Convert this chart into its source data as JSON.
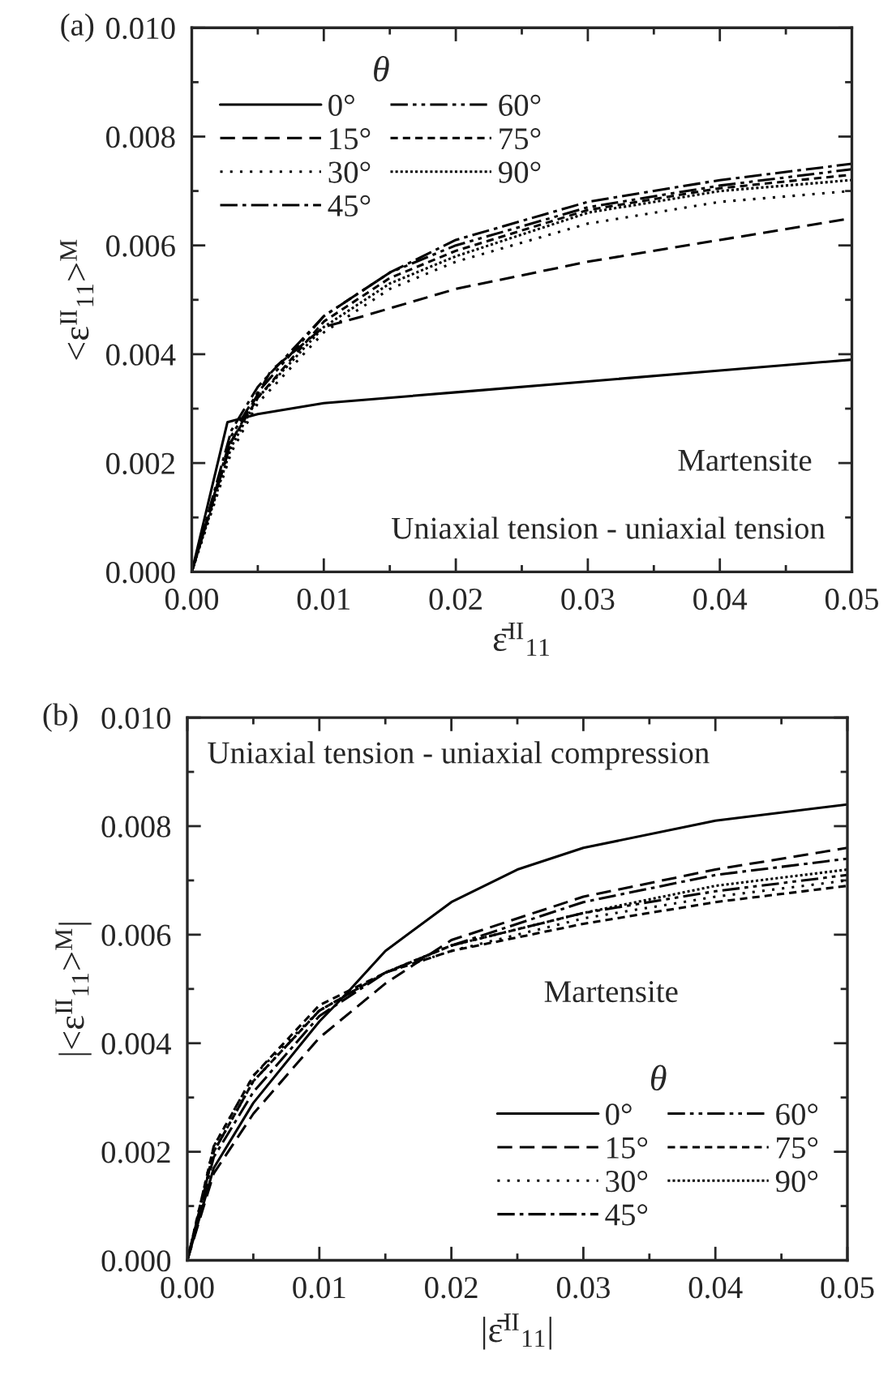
{
  "chart_data": [
    {
      "type": "line",
      "xlabel": "ε̄$^{II}$$_{11}$",
      "ylabel": "<ε$^{II}$$_{11}$>$^{M}$",
      "legend_title": "θ",
      "legend": "top left",
      "annotations": [
        "(a)",
        "Martensite",
        "Uniaxial tension - uniaxial tension"
      ],
      "xlim": [
        0,
        0.05
      ],
      "ylim": [
        0,
        0.01
      ],
      "xticks": [
        {
          "value": 0,
          "label": "0.00"
        },
        {
          "value": 0.01,
          "label": "0.01"
        },
        {
          "value": 0.02,
          "label": "0.02"
        },
        {
          "value": 0.03,
          "label": "0.03"
        },
        {
          "value": 0.04,
          "label": "0.04"
        },
        {
          "value": 0.05,
          "label": "0.05"
        }
      ],
      "yticks": [
        {
          "value": 0,
          "label": "0.000"
        },
        {
          "value": 0.002,
          "label": "0.002"
        },
        {
          "value": 0.004,
          "label": "0.004"
        },
        {
          "value": 0.006,
          "label": "0.006"
        },
        {
          "value": 0.008,
          "label": "0.008"
        },
        {
          "value": 0.01,
          "label": "0.010"
        }
      ],
      "series": [
        {
          "name": "0°",
          "color": "#000000",
          "line_style": "solid",
          "x": [
            0,
            0.0027,
            0.005,
            0.01,
            0.02,
            0.03,
            0.04,
            0.05
          ],
          "values": [
            0,
            0.00275,
            0.0029,
            0.0031,
            0.0033,
            0.0035,
            0.0037,
            0.0039
          ]
        },
        {
          "name": "15°",
          "color": "#000000",
          "line_style": "dashed",
          "x": [
            0,
            0.003,
            0.006,
            0.01,
            0.013,
            0.02,
            0.03,
            0.04,
            0.05
          ],
          "values": [
            0,
            0.0024,
            0.0037,
            0.0045,
            0.0047,
            0.0052,
            0.0057,
            0.0061,
            0.0065
          ]
        },
        {
          "name": "30°",
          "color": "#000000",
          "line_style": "dotted",
          "x": [
            0,
            0.003,
            0.005,
            0.01,
            0.015,
            0.02,
            0.03,
            0.04,
            0.05
          ],
          "values": [
            0,
            0.0022,
            0.0031,
            0.0044,
            0.0052,
            0.0057,
            0.0064,
            0.0068,
            0.007
          ]
        },
        {
          "name": "45°",
          "color": "#000000",
          "line_style": "dashdot",
          "x": [
            0,
            0.003,
            0.005,
            0.01,
            0.015,
            0.02,
            0.03,
            0.04,
            0.05
          ],
          "values": [
            0,
            0.0026,
            0.0034,
            0.0047,
            0.0055,
            0.0061,
            0.0068,
            0.0072,
            0.0075
          ]
        },
        {
          "name": "60°",
          "color": "#000000",
          "line_style": "dashdotdot",
          "x": [
            0,
            0.003,
            0.005,
            0.01,
            0.015,
            0.02,
            0.03,
            0.04,
            0.05
          ],
          "values": [
            0,
            0.0025,
            0.0033,
            0.0047,
            0.0055,
            0.006,
            0.0067,
            0.0071,
            0.0074
          ]
        },
        {
          "name": "75°",
          "color": "#000000",
          "line_style": "shortdash",
          "x": [
            0,
            0.003,
            0.005,
            0.01,
            0.015,
            0.02,
            0.03,
            0.04,
            0.05
          ],
          "values": [
            0,
            0.0024,
            0.0032,
            0.0046,
            0.0054,
            0.0059,
            0.00665,
            0.00705,
            0.0073
          ]
        },
        {
          "name": "90°",
          "color": "#000000",
          "line_style": "finedotted",
          "x": [
            0,
            0.003,
            0.005,
            0.01,
            0.015,
            0.02,
            0.03,
            0.04,
            0.05
          ],
          "values": [
            0,
            0.0023,
            0.0032,
            0.0045,
            0.0053,
            0.0058,
            0.0066,
            0.007,
            0.0072
          ]
        }
      ]
    },
    {
      "type": "line",
      "xlabel": "|ε̄$^{II}$$_{11}$|",
      "ylabel": "|<ε$^{II}$$_{11}$>$^{M}$|",
      "legend_title": "θ",
      "legend": "bottom right",
      "annotations": [
        "(b)",
        "Uniaxial tension - uniaxial compression",
        "Martensite"
      ],
      "xlim": [
        0,
        0.05
      ],
      "ylim": [
        0,
        0.01
      ],
      "xticks": [
        {
          "value": 0,
          "label": "0.00"
        },
        {
          "value": 0.01,
          "label": "0.01"
        },
        {
          "value": 0.02,
          "label": "0.02"
        },
        {
          "value": 0.03,
          "label": "0.03"
        },
        {
          "value": 0.04,
          "label": "0.04"
        },
        {
          "value": 0.05,
          "label": "0.05"
        }
      ],
      "yticks": [
        {
          "value": 0,
          "label": "0.000"
        },
        {
          "value": 0.002,
          "label": "0.002"
        },
        {
          "value": 0.004,
          "label": "0.004"
        },
        {
          "value": 0.006,
          "label": "0.006"
        },
        {
          "value": 0.008,
          "label": "0.008"
        },
        {
          "value": 0.01,
          "label": "0.010"
        }
      ],
      "series": [
        {
          "name": "0°",
          "color": "#000000",
          "line_style": "solid",
          "x": [
            0,
            0.002,
            0.005,
            0.01,
            0.012,
            0.015,
            0.02,
            0.025,
            0.03,
            0.04,
            0.05
          ],
          "values": [
            0,
            0.0017,
            0.0029,
            0.0044,
            0.0049,
            0.0057,
            0.0066,
            0.0072,
            0.0076,
            0.0081,
            0.0084
          ]
        },
        {
          "name": "15°",
          "color": "#000000",
          "line_style": "dashed",
          "x": [
            0,
            0.002,
            0.005,
            0.01,
            0.015,
            0.02,
            0.03,
            0.04,
            0.05
          ],
          "values": [
            0,
            0.0016,
            0.0027,
            0.0041,
            0.0051,
            0.0059,
            0.0067,
            0.0072,
            0.0076
          ]
        },
        {
          "name": "30°",
          "color": "#000000",
          "line_style": "dotted",
          "x": [
            0,
            0.002,
            0.005,
            0.01,
            0.015,
            0.02,
            0.03,
            0.04,
            0.05
          ],
          "values": [
            0,
            0.0021,
            0.0034,
            0.0046,
            0.0053,
            0.0057,
            0.0063,
            0.0067,
            0.007
          ]
        },
        {
          "name": "45°",
          "color": "#000000",
          "line_style": "dashdot",
          "x": [
            0,
            0.002,
            0.005,
            0.01,
            0.015,
            0.02,
            0.03,
            0.04,
            0.05
          ],
          "values": [
            0,
            0.0019,
            0.0031,
            0.0045,
            0.0053,
            0.0058,
            0.0066,
            0.0071,
            0.0074
          ]
        },
        {
          "name": "60°",
          "color": "#000000",
          "line_style": "dashdotdot",
          "x": [
            0,
            0.002,
            0.005,
            0.01,
            0.015,
            0.02,
            0.03,
            0.04,
            0.05
          ],
          "values": [
            0,
            0.002,
            0.0033,
            0.0046,
            0.0053,
            0.0058,
            0.0064,
            0.0068,
            0.0071
          ]
        },
        {
          "name": "75°",
          "color": "#000000",
          "line_style": "shortdash",
          "x": [
            0,
            0.002,
            0.005,
            0.01,
            0.015,
            0.02,
            0.03,
            0.04,
            0.05
          ],
          "values": [
            0,
            0.0021,
            0.0034,
            0.0047,
            0.0053,
            0.0057,
            0.0062,
            0.0066,
            0.0069
          ]
        },
        {
          "name": "90°",
          "color": "#000000",
          "line_style": "finedotted",
          "x": [
            0,
            0.002,
            0.005,
            0.01,
            0.015,
            0.02,
            0.03,
            0.04,
            0.05
          ],
          "values": [
            0,
            0.002,
            0.0033,
            0.0046,
            0.0053,
            0.0058,
            0.0064,
            0.0069,
            0.0072
          ]
        }
      ]
    }
  ]
}
